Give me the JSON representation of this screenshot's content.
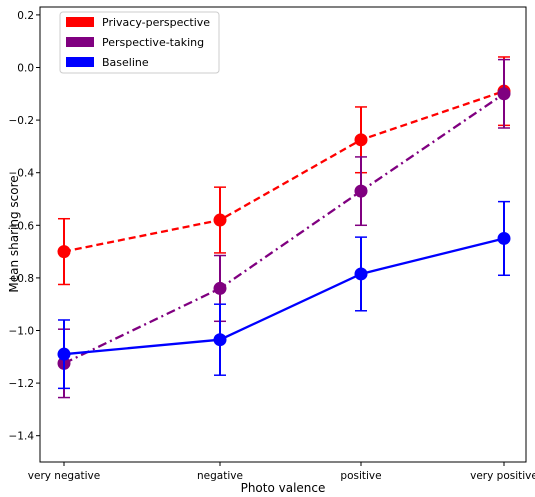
{
  "chart_data": {
    "type": "line",
    "categories": [
      "very negative",
      "negative",
      "positive",
      "very positive"
    ],
    "xlabel": "Photo valence",
    "ylabel": "Mean sharing score",
    "ylim": [
      -1.5,
      0.23
    ],
    "yticks": [
      0.2,
      0.0,
      -0.2,
      -0.4,
      -0.6,
      -0.8,
      -1.0,
      -1.2,
      -1.4
    ],
    "ytick_labels": [
      "0.2",
      "0.0",
      "−0.2",
      "−0.4",
      "−0.6",
      "−0.8",
      "−1.0",
      "−1.2",
      "−1.4"
    ],
    "grid": false,
    "legend_position": "top-left",
    "series": [
      {
        "name": "Privacy-perspective",
        "color": "#ff0000",
        "linestyle": "dashed",
        "values": [
          -0.7,
          -0.58,
          -0.275,
          -0.09
        ],
        "errors": [
          0.125,
          0.125,
          0.125,
          0.13
        ]
      },
      {
        "name": "Perspective-taking",
        "color": "#800080",
        "linestyle": "dashdot",
        "values": [
          -1.125,
          -0.84,
          -0.47,
          -0.1
        ],
        "errors": [
          0.13,
          0.125,
          0.13,
          0.13
        ]
      },
      {
        "name": "Baseline",
        "color": "#0000ff",
        "linestyle": "solid",
        "values": [
          -1.09,
          -1.035,
          -0.785,
          -0.65
        ],
        "errors": [
          0.13,
          0.135,
          0.14,
          0.14
        ]
      }
    ]
  }
}
